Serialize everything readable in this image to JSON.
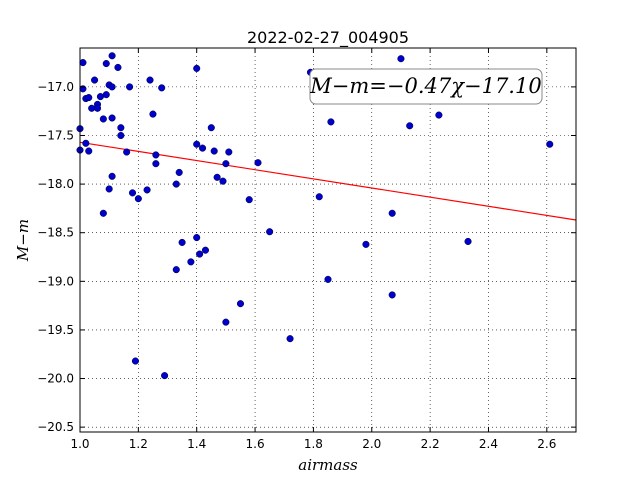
{
  "chart_data": {
    "type": "scatter",
    "title": "2022-02-27_004905",
    "xlabel": "airmass",
    "ylabel": "M−m",
    "xlim": [
      1.0,
      2.7
    ],
    "ylim": [
      -20.55,
      -16.6
    ],
    "x_ticks": [
      "1.0",
      "1.2",
      "1.4",
      "1.6",
      "1.8",
      "2.0",
      "2.2",
      "2.4",
      "2.6"
    ],
    "y_ticks": [
      "−17.0",
      "−17.5",
      "−18.0",
      "−18.5",
      "−19.0",
      "−19.5",
      "−20.0",
      "−20.5"
    ],
    "grid": true,
    "annotation": "M−m=−0.47χ−17.10",
    "fit": {
      "slope": -0.47,
      "intercept": -17.1,
      "color": "#ff0000"
    },
    "point_color": "#0000cc",
    "points": [
      [
        1.0,
        -17.43
      ],
      [
        1.0,
        -17.65
      ],
      [
        1.01,
        -17.02
      ],
      [
        1.01,
        -16.75
      ],
      [
        1.02,
        -17.12
      ],
      [
        1.02,
        -17.58
      ],
      [
        1.03,
        -17.66
      ],
      [
        1.03,
        -17.11
      ],
      [
        1.04,
        -17.22
      ],
      [
        1.05,
        -16.93
      ],
      [
        1.06,
        -17.18
      ],
      [
        1.06,
        -17.22
      ],
      [
        1.07,
        -17.1
      ],
      [
        1.08,
        -17.33
      ],
      [
        1.08,
        -18.3
      ],
      [
        1.09,
        -17.08
      ],
      [
        1.09,
        -16.76
      ],
      [
        1.1,
        -16.98
      ],
      [
        1.1,
        -18.05
      ],
      [
        1.11,
        -16.68
      ],
      [
        1.11,
        -17.0
      ],
      [
        1.11,
        -17.32
      ],
      [
        1.11,
        -17.92
      ],
      [
        1.13,
        -16.8
      ],
      [
        1.14,
        -17.42
      ],
      [
        1.14,
        -17.5
      ],
      [
        1.16,
        -17.67
      ],
      [
        1.17,
        -17.0
      ],
      [
        1.18,
        -18.09
      ],
      [
        1.19,
        -19.82
      ],
      [
        1.2,
        -18.15
      ],
      [
        1.23,
        -18.06
      ],
      [
        1.24,
        -16.93
      ],
      [
        1.25,
        -17.28
      ],
      [
        1.26,
        -17.7
      ],
      [
        1.26,
        -17.79
      ],
      [
        1.28,
        -17.01
      ],
      [
        1.29,
        -19.97
      ],
      [
        1.33,
        -18.0
      ],
      [
        1.33,
        -18.88
      ],
      [
        1.34,
        -17.88
      ],
      [
        1.35,
        -18.6
      ],
      [
        1.38,
        -18.8
      ],
      [
        1.4,
        -16.81
      ],
      [
        1.4,
        -17.59
      ],
      [
        1.4,
        -18.55
      ],
      [
        1.41,
        -18.72
      ],
      [
        1.42,
        -17.63
      ],
      [
        1.43,
        -18.68
      ],
      [
        1.45,
        -17.42
      ],
      [
        1.46,
        -17.66
      ],
      [
        1.47,
        -17.93
      ],
      [
        1.49,
        -17.97
      ],
      [
        1.5,
        -17.79
      ],
      [
        1.5,
        -19.42
      ],
      [
        1.51,
        -17.67
      ],
      [
        1.55,
        -19.23
      ],
      [
        1.58,
        -18.16
      ],
      [
        1.61,
        -17.78
      ],
      [
        1.65,
        -18.49
      ],
      [
        1.72,
        -19.59
      ],
      [
        1.79,
        -16.85
      ],
      [
        1.82,
        -18.13
      ],
      [
        1.85,
        -18.98
      ],
      [
        1.86,
        -17.36
      ],
      [
        1.98,
        -18.62
      ],
      [
        2.07,
        -18.3
      ],
      [
        2.07,
        -19.14
      ],
      [
        2.1,
        -16.71
      ],
      [
        2.13,
        -17.4
      ],
      [
        2.23,
        -17.29
      ],
      [
        2.33,
        -18.59
      ],
      [
        2.61,
        -17.59
      ]
    ]
  }
}
